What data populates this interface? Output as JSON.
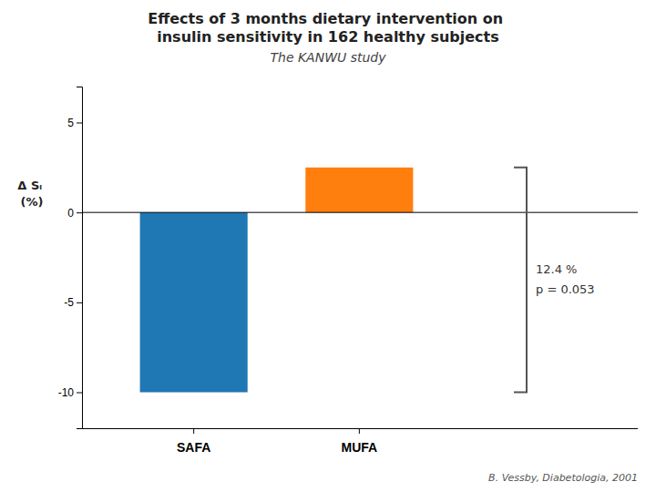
{
  "chart_data": {
    "type": "bar",
    "title": "Effects of 3 months dietary intervention on insulin sensitivity in 162 healthy subjects",
    "subtitle": "The KANWU study",
    "y_label": "Δ Sᵢ (%)",
    "categories": [
      "SAFA",
      "MUFA"
    ],
    "values": [
      -10.0,
      2.5
    ],
    "ylim": [
      -12,
      7
    ],
    "yticks": [
      -10,
      -5,
      0,
      5
    ],
    "grid": false,
    "annotations": [
      "12.4 %",
      "p = 0.053"
    ],
    "caption": "B. Vessby, Diabetologia, 2001"
  }
}
